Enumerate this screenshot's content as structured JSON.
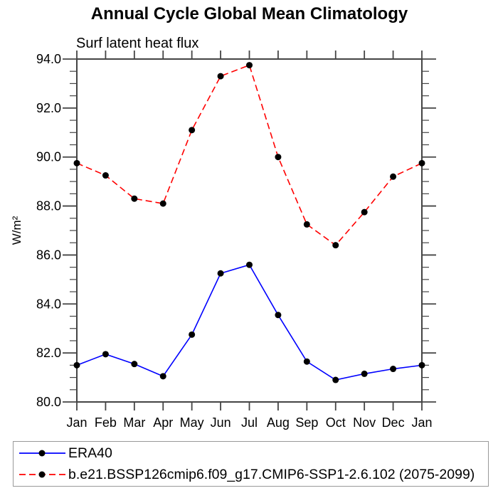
{
  "chart_data": {
    "type": "line",
    "title": "Annual Cycle Global Mean Climatology",
    "subtitle": "Surf latent heat flux",
    "ylabel": "W/m²",
    "xlabel": "",
    "ylim": [
      80.0,
      94.0
    ],
    "ytick_major": 2.0,
    "ytick_minor": 0.5,
    "ytick_decimals": 1,
    "grid": false,
    "legend_position": "bottom",
    "frame_color": "#444444",
    "marker": {
      "shape": "circle",
      "color": "#000000",
      "radius": 4.5
    },
    "categories": [
      "Jan",
      "Feb",
      "Mar",
      "Apr",
      "May",
      "Jun",
      "Jul",
      "Aug",
      "Sep",
      "Oct",
      "Nov",
      "Dec",
      "Jan"
    ],
    "series": [
      {
        "name": "ERA40",
        "color": "#0000ff",
        "line_style": "solid",
        "values": [
          81.5,
          81.95,
          81.55,
          81.05,
          82.75,
          85.25,
          85.6,
          83.55,
          81.65,
          80.9,
          81.15,
          81.35,
          81.5
        ]
      },
      {
        "name": "b.e21.BSSP126cmip6.f09_g17.CMIP6-SSP1-2.6.102 (2075-2099)",
        "color": "#ff0000",
        "line_style": "dashed",
        "values": [
          89.75,
          89.25,
          88.3,
          88.1,
          91.1,
          93.3,
          93.75,
          90.0,
          87.25,
          86.4,
          87.75,
          89.2,
          89.75
        ]
      }
    ]
  }
}
